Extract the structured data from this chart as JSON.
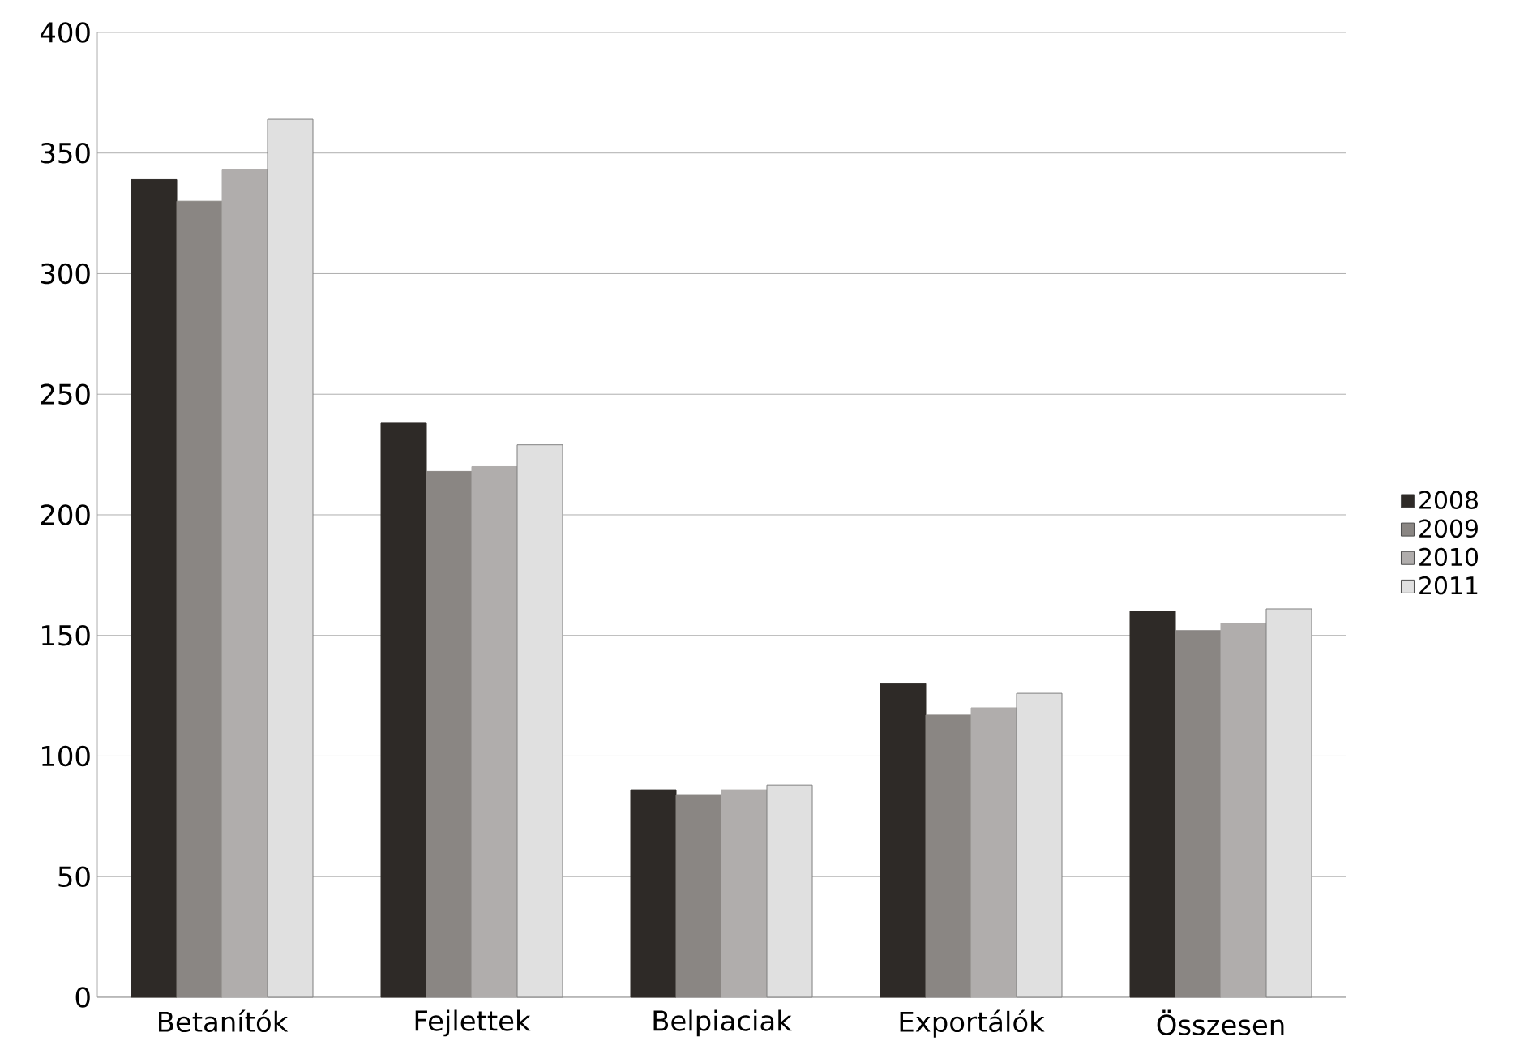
{
  "chart_data": {
    "type": "bar",
    "categories": [
      "Betanítók",
      "Fejlettek",
      "Belpiaciak",
      "Exportálók",
      "Összesen"
    ],
    "series": [
      {
        "name": "2008",
        "color": "#2e2a27",
        "values": [
          339,
          238,
          86,
          130,
          160
        ]
      },
      {
        "name": "2009",
        "color": "#8a8683",
        "values": [
          330,
          218,
          84,
          117,
          152
        ]
      },
      {
        "name": "2010",
        "color": "#b0adac",
        "values": [
          343,
          220,
          86,
          120,
          155
        ]
      },
      {
        "name": "2011",
        "color": "#e0e0e0",
        "values": [
          364,
          229,
          88,
          126,
          161
        ]
      }
    ],
    "ylim": [
      0,
      400
    ],
    "yticks": [
      0,
      50,
      100,
      150,
      200,
      250,
      300,
      350,
      400
    ],
    "grid": "y",
    "legend": "right"
  }
}
